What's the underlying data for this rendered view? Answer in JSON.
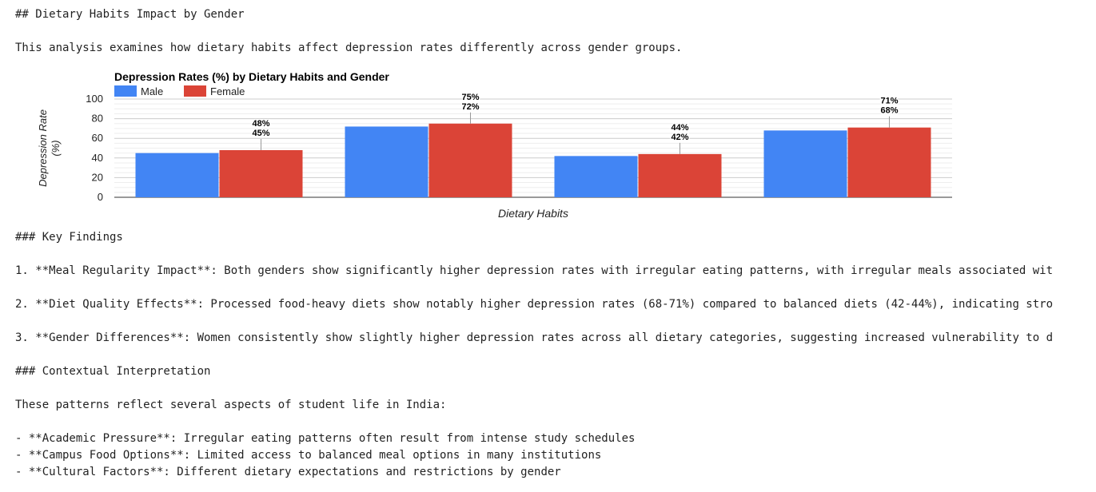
{
  "document": {
    "heading": "## Dietary Habits Impact by Gender",
    "intro": "This analysis examines how dietary habits affect depression rates differently across gender groups.",
    "key_findings_heading": "### Key Findings",
    "findings": [
      "1. **Meal Regularity Impact**: Both genders show significantly higher depression rates with irregular eating patterns, with irregular meals associated wit",
      "2. **Diet Quality Effects**: Processed food-heavy diets show notably higher depression rates (68-71%) compared to balanced diets (42-44%), indicating stro",
      "3. **Gender Differences**: Women consistently show slightly higher depression rates across all dietary categories, suggesting increased vulnerability to d"
    ],
    "context_heading": "### Contextual Interpretation",
    "context_intro": "These patterns reflect several aspects of student life in India:",
    "bullets": [
      "- **Academic Pressure**: Irregular eating patterns often result from intense study schedules",
      "- **Campus Food Options**: Limited access to balanced meal options in many institutions",
      "- **Cultural Factors**: Different dietary expectations and restrictions by gender"
    ]
  },
  "chart_data": {
    "type": "bar",
    "title": "Depression Rates (%) by Dietary Habits and Gender",
    "xlabel": "Dietary Habits",
    "ylabel": "Depression Rate (%)",
    "ylabel_lines": [
      "Depression Rate",
      "(%)"
    ],
    "ylim": [
      0,
      100
    ],
    "yticks": [
      0,
      20,
      40,
      60,
      80,
      100
    ],
    "categories": [
      "",
      "",
      "",
      ""
    ],
    "series": [
      {
        "name": "Male",
        "color": "#4285f4",
        "values": [
          45,
          72,
          42,
          68
        ]
      },
      {
        "name": "Female",
        "color": "#db4437",
        "values": [
          48,
          75,
          44,
          71
        ]
      }
    ],
    "data_labels": [
      "48%\n45%",
      "75%\n72%",
      "44%\n42%",
      "71%\n68%"
    ],
    "legend_position": "top-left",
    "grid": true
  }
}
